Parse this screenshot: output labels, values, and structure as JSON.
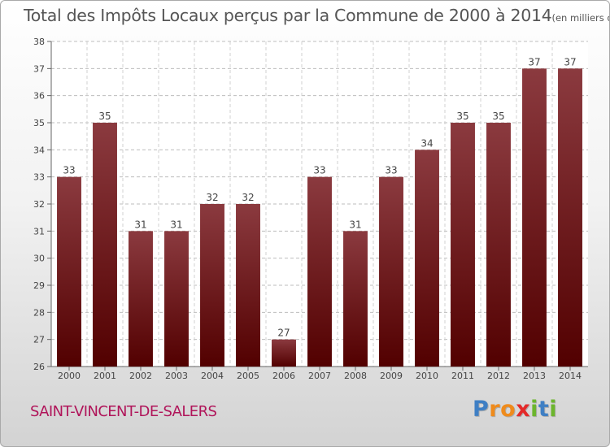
{
  "header": {
    "title": "Total des Impôts Locaux perçus par la Commune de 2000 à 2014",
    "unit": "(en milliers d'€)"
  },
  "footer": {
    "commune": "SAINT-VINCENT-DE-SALERS",
    "logo_letters": [
      "P",
      "r",
      "o",
      "x",
      "i",
      "t",
      "i"
    ],
    "logo_colors": [
      "#3f7fc4",
      "#ef8b1c",
      "#ef8b1c",
      "#e42a2a",
      "#6cb52d",
      "#3f7fc4",
      "#6cb52d"
    ]
  },
  "chart_data": {
    "type": "bar",
    "title": "Total des Impôts Locaux perçus par la Commune de 2000 à 2014",
    "xlabel": "",
    "ylabel": "en milliers d'€",
    "categories": [
      "2000",
      "2001",
      "2002",
      "2003",
      "2004",
      "2005",
      "2006",
      "2007",
      "2008",
      "2009",
      "2010",
      "2011",
      "2012",
      "2013",
      "2014"
    ],
    "values": [
      33,
      35,
      31,
      31,
      32,
      32,
      27,
      33,
      31,
      33,
      34,
      35,
      35,
      37,
      37
    ],
    "ylim": [
      26,
      38
    ],
    "yticks": [
      26,
      27,
      28,
      29,
      30,
      31,
      32,
      33,
      34,
      35,
      36,
      37,
      38
    ],
    "grid": true,
    "bar_color_top": "#8b3a3f",
    "bar_color_bottom": "#520000"
  }
}
